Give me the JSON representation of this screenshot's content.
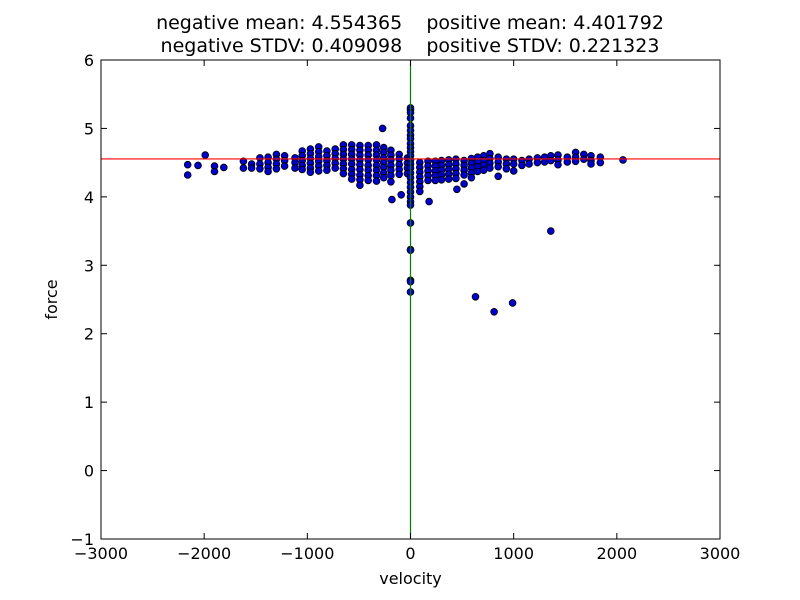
{
  "chart_data": {
    "type": "scatter",
    "title_lines": [
      "negative mean: 4.554365    positive mean: 4.401792",
      "negative STDV: 0.409098    positive STDV: 0.221323"
    ],
    "xlabel": "velocity",
    "ylabel": "force",
    "xlim": [
      -3000,
      3000
    ],
    "ylim": [
      -1,
      6
    ],
    "x_ticks": [
      -3000,
      -2000,
      -1000,
      0,
      1000,
      2000,
      3000
    ],
    "y_ticks": [
      -1,
      0,
      1,
      2,
      3,
      4,
      5,
      6
    ],
    "x_tick_labels": [
      "−3000",
      "−2000",
      "−1000",
      "0",
      "1000",
      "2000",
      "3000"
    ],
    "y_tick_labels": [
      "−1",
      "0",
      "1",
      "2",
      "3",
      "4",
      "5",
      "6"
    ],
    "grid": false,
    "reference_lines": {
      "horizontal_y": 4.554365,
      "vertical_x": 0,
      "horizontal_color": "#ff0000",
      "vertical_color": "#008000"
    },
    "marker_color": "#0000cc",
    "series": [
      {
        "points": [
          [
            -2160,
            4.47
          ],
          [
            -2160,
            4.32
          ],
          [
            -2060,
            4.46
          ],
          [
            -1990,
            4.61
          ],
          [
            -1900,
            4.45
          ],
          [
            -1900,
            4.37
          ],
          [
            -1810,
            4.43
          ],
          [
            -1620,
            4.52
          ],
          [
            -1620,
            4.42
          ],
          [
            -1540,
            4.48
          ],
          [
            -1540,
            4.42
          ],
          [
            -1460,
            4.57
          ],
          [
            -1460,
            4.48
          ],
          [
            -1460,
            4.41
          ],
          [
            -1380,
            4.58
          ],
          [
            -1380,
            4.5
          ],
          [
            -1380,
            4.43
          ],
          [
            -1380,
            4.37
          ],
          [
            -1300,
            4.62
          ],
          [
            -1300,
            4.55
          ],
          [
            -1300,
            4.48
          ],
          [
            -1300,
            4.41
          ],
          [
            -1220,
            4.6
          ],
          [
            -1220,
            4.53
          ],
          [
            -1220,
            4.45
          ],
          [
            -1120,
            4.57
          ],
          [
            -1120,
            4.5
          ],
          [
            -1120,
            4.42
          ],
          [
            -1050,
            4.67
          ],
          [
            -1050,
            4.6
          ],
          [
            -1050,
            4.53
          ],
          [
            -1050,
            4.46
          ],
          [
            -1050,
            4.4
          ],
          [
            -970,
            4.7
          ],
          [
            -970,
            4.63
          ],
          [
            -970,
            4.56
          ],
          [
            -970,
            4.49
          ],
          [
            -970,
            4.42
          ],
          [
            -970,
            4.36
          ],
          [
            -890,
            4.73
          ],
          [
            -890,
            4.66
          ],
          [
            -890,
            4.59
          ],
          [
            -890,
            4.52
          ],
          [
            -890,
            4.45
          ],
          [
            -890,
            4.38
          ],
          [
            -810,
            4.67
          ],
          [
            -810,
            4.6
          ],
          [
            -810,
            4.53
          ],
          [
            -810,
            4.46
          ],
          [
            -810,
            4.39
          ],
          [
            -730,
            4.7
          ],
          [
            -730,
            4.63
          ],
          [
            -730,
            4.56
          ],
          [
            -730,
            4.49
          ],
          [
            -730,
            4.42
          ],
          [
            -650,
            4.76
          ],
          [
            -650,
            4.69
          ],
          [
            -650,
            4.62
          ],
          [
            -650,
            4.55
          ],
          [
            -650,
            4.48
          ],
          [
            -650,
            4.41
          ],
          [
            -650,
            4.34
          ],
          [
            -570,
            4.76
          ],
          [
            -570,
            4.69
          ],
          [
            -570,
            4.62
          ],
          [
            -570,
            4.55
          ],
          [
            -570,
            4.48
          ],
          [
            -570,
            4.4
          ],
          [
            -570,
            4.33
          ],
          [
            -570,
            4.26
          ],
          [
            -490,
            4.75
          ],
          [
            -490,
            4.68
          ],
          [
            -490,
            4.61
          ],
          [
            -490,
            4.54
          ],
          [
            -490,
            4.47
          ],
          [
            -490,
            4.4
          ],
          [
            -490,
            4.32
          ],
          [
            -490,
            4.25
          ],
          [
            -490,
            4.17
          ],
          [
            -410,
            4.75
          ],
          [
            -410,
            4.68
          ],
          [
            -410,
            4.61
          ],
          [
            -410,
            4.54
          ],
          [
            -410,
            4.46
          ],
          [
            -410,
            4.39
          ],
          [
            -410,
            4.31
          ],
          [
            -410,
            4.24
          ],
          [
            -330,
            4.76
          ],
          [
            -330,
            4.68
          ],
          [
            -330,
            4.61
          ],
          [
            -330,
            4.54
          ],
          [
            -330,
            4.46
          ],
          [
            -330,
            4.39
          ],
          [
            -330,
            4.31
          ],
          [
            -330,
            4.23
          ],
          [
            -270,
            5.0
          ],
          [
            -260,
            4.72
          ],
          [
            -260,
            4.65
          ],
          [
            -260,
            4.57
          ],
          [
            -260,
            4.5
          ],
          [
            -260,
            4.43
          ],
          [
            -260,
            4.35
          ],
          [
            -260,
            4.28
          ],
          [
            -190,
            4.68
          ],
          [
            -190,
            4.61
          ],
          [
            -190,
            4.54
          ],
          [
            -190,
            4.46
          ],
          [
            -190,
            4.39
          ],
          [
            -190,
            4.31
          ],
          [
            -190,
            4.22
          ],
          [
            -180,
            3.96
          ],
          [
            -110,
            4.62
          ],
          [
            -110,
            4.55
          ],
          [
            -110,
            4.47
          ],
          [
            -110,
            4.4
          ],
          [
            -110,
            4.33
          ],
          [
            -90,
            4.03
          ],
          [
            -30,
            4.57
          ],
          [
            -30,
            4.49
          ],
          [
            -30,
            4.42
          ],
          [
            -30,
            4.34
          ],
          [
            0,
            5.3
          ],
          [
            0,
            5.27
          ],
          [
            0,
            5.23
          ],
          [
            0,
            5.15
          ],
          [
            0,
            5.04
          ],
          [
            0,
            4.97
          ],
          [
            0,
            4.9
          ],
          [
            0,
            4.85
          ],
          [
            0,
            4.78
          ],
          [
            0,
            4.72
          ],
          [
            0,
            4.66
          ],
          [
            0,
            4.6
          ],
          [
            0,
            4.54
          ],
          [
            0,
            4.48
          ],
          [
            0,
            4.42
          ],
          [
            0,
            4.35
          ],
          [
            0,
            4.28
          ],
          [
            0,
            4.21
          ],
          [
            0,
            4.14
          ],
          [
            0,
            4.07
          ],
          [
            0,
            4.0
          ],
          [
            0,
            3.93
          ],
          [
            0,
            3.88
          ],
          [
            0,
            3.62
          ],
          [
            0,
            3.23
          ],
          [
            0,
            3.22
          ],
          [
            0,
            2.78
          ],
          [
            0,
            2.76
          ],
          [
            0,
            2.61
          ],
          [
            90,
            4.5
          ],
          [
            90,
            4.43
          ],
          [
            90,
            4.36
          ],
          [
            90,
            4.29
          ],
          [
            90,
            4.22
          ],
          [
            90,
            4.15
          ],
          [
            90,
            4.08
          ],
          [
            170,
            4.52
          ],
          [
            170,
            4.45
          ],
          [
            170,
            4.38
          ],
          [
            170,
            4.31
          ],
          [
            170,
            4.24
          ],
          [
            180,
            3.93
          ],
          [
            240,
            4.52
          ],
          [
            240,
            4.45
          ],
          [
            240,
            4.38
          ],
          [
            240,
            4.31
          ],
          [
            240,
            4.24
          ],
          [
            300,
            4.53
          ],
          [
            300,
            4.46
          ],
          [
            300,
            4.39
          ],
          [
            300,
            4.32
          ],
          [
            300,
            4.25
          ],
          [
            370,
            4.54
          ],
          [
            370,
            4.47
          ],
          [
            370,
            4.4
          ],
          [
            370,
            4.33
          ],
          [
            370,
            4.26
          ],
          [
            440,
            4.55
          ],
          [
            440,
            4.48
          ],
          [
            440,
            4.41
          ],
          [
            440,
            4.34
          ],
          [
            440,
            4.27
          ],
          [
            450,
            4.11
          ],
          [
            520,
            4.53
          ],
          [
            520,
            4.46
          ],
          [
            520,
            4.39
          ],
          [
            520,
            4.32
          ],
          [
            520,
            4.19
          ],
          [
            590,
            4.56
          ],
          [
            590,
            4.49
          ],
          [
            590,
            4.42
          ],
          [
            590,
            4.35
          ],
          [
            590,
            4.28
          ],
          [
            650,
            4.58
          ],
          [
            650,
            4.51
          ],
          [
            650,
            4.44
          ],
          [
            650,
            4.37
          ],
          [
            630,
            2.54
          ],
          [
            710,
            4.6
          ],
          [
            710,
            4.53
          ],
          [
            710,
            4.46
          ],
          [
            710,
            4.39
          ],
          [
            770,
            4.63
          ],
          [
            770,
            4.56
          ],
          [
            770,
            4.49
          ],
          [
            770,
            4.42
          ],
          [
            810,
            2.32
          ],
          [
            850,
            4.58
          ],
          [
            850,
            4.51
          ],
          [
            850,
            4.44
          ],
          [
            850,
            4.3
          ],
          [
            930,
            4.55
          ],
          [
            930,
            4.48
          ],
          [
            930,
            4.41
          ],
          [
            1000,
            4.55
          ],
          [
            1000,
            4.48
          ],
          [
            1000,
            4.38
          ],
          [
            990,
            2.45
          ],
          [
            1080,
            4.53
          ],
          [
            1080,
            4.46
          ],
          [
            1150,
            4.55
          ],
          [
            1150,
            4.48
          ],
          [
            1230,
            4.57
          ],
          [
            1230,
            4.5
          ],
          [
            1300,
            4.58
          ],
          [
            1300,
            4.51
          ],
          [
            1360,
            4.6
          ],
          [
            1360,
            4.53
          ],
          [
            1360,
            3.5
          ],
          [
            1430,
            4.61
          ],
          [
            1430,
            4.54
          ],
          [
            1430,
            4.47
          ],
          [
            1520,
            4.58
          ],
          [
            1520,
            4.51
          ],
          [
            1600,
            4.65
          ],
          [
            1600,
            4.58
          ],
          [
            1600,
            4.52
          ],
          [
            1680,
            4.62
          ],
          [
            1680,
            4.55
          ],
          [
            1750,
            4.6
          ],
          [
            1750,
            4.53
          ],
          [
            1750,
            4.48
          ],
          [
            1840,
            4.58
          ],
          [
            1840,
            4.5
          ],
          [
            2060,
            4.54
          ]
        ]
      }
    ]
  }
}
